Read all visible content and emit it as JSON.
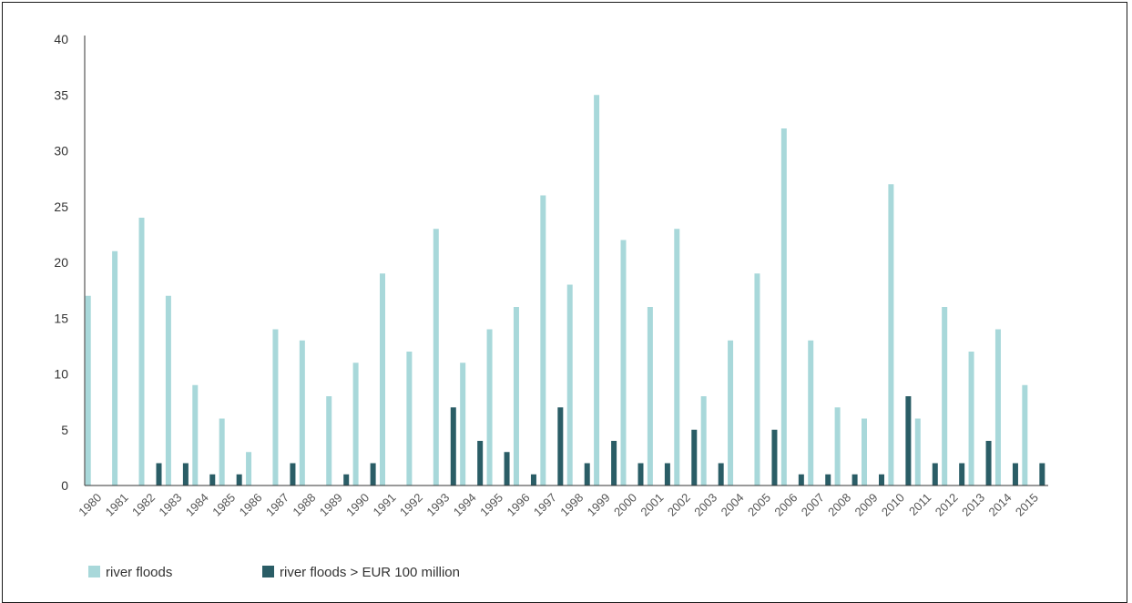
{
  "chart_data": {
    "type": "bar",
    "title": "",
    "xlabel": "",
    "ylabel": "",
    "ylim": [
      0,
      40
    ],
    "yticks": [
      0,
      5,
      10,
      15,
      20,
      25,
      30,
      35,
      40
    ],
    "grid": false,
    "legend_position": "bottom-left",
    "categories": [
      "1980",
      "1981",
      "1982",
      "1983",
      "1984",
      "1985",
      "1986",
      "1987",
      "1988",
      "1989",
      "1990",
      "1991",
      "1992",
      "1993",
      "1994",
      "1995",
      "1996",
      "1997",
      "1998",
      "1999",
      "2000",
      "2001",
      "2002",
      "2003",
      "2004",
      "2005",
      "2006",
      "2007",
      "2008",
      "2009",
      "2010",
      "2011",
      "2012",
      "2013",
      "2014",
      "2015"
    ],
    "series": [
      {
        "name": "river floods",
        "color": "#a8d8da",
        "values": [
          17,
          21,
          24,
          17,
          9,
          6,
          3,
          14,
          13,
          8,
          11,
          19,
          12,
          23,
          11,
          14,
          16,
          26,
          18,
          35,
          22,
          16,
          23,
          8,
          13,
          19,
          32,
          13,
          7,
          6,
          27,
          6,
          16,
          12,
          14,
          9
        ]
      },
      {
        "name": "river floods > EUR 100 million",
        "color": "#2a5d66",
        "values": [
          0,
          0,
          2,
          2,
          1,
          1,
          0,
          2,
          0,
          1,
          2,
          0,
          0,
          7,
          4,
          3,
          1,
          7,
          2,
          4,
          2,
          2,
          5,
          2,
          0,
          5,
          1,
          1,
          1,
          1,
          8,
          2,
          2,
          4,
          2,
          2
        ]
      }
    ]
  }
}
